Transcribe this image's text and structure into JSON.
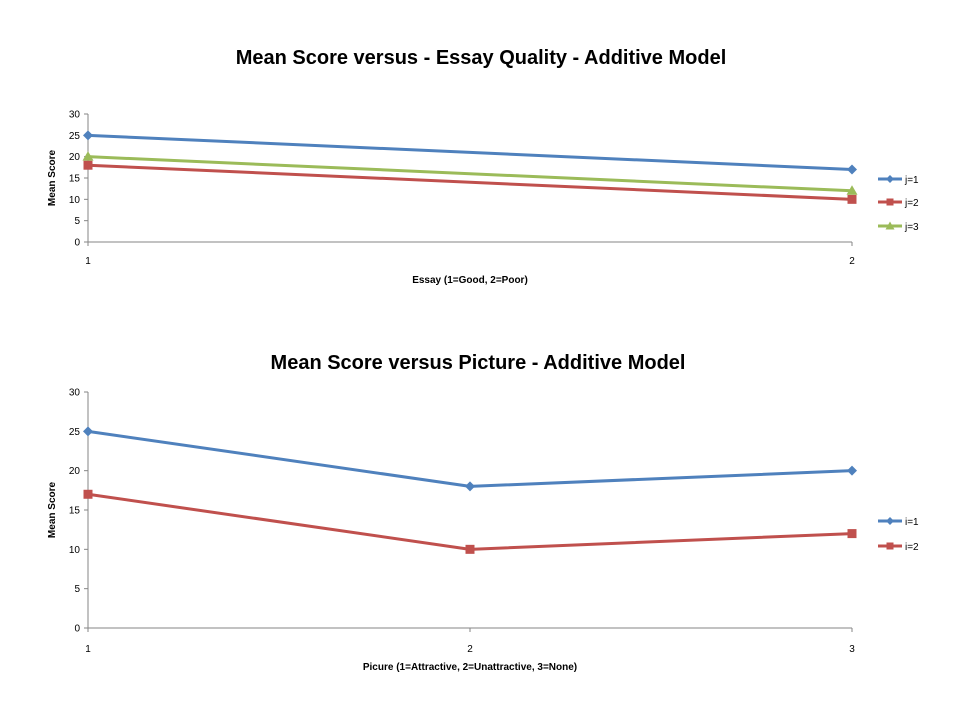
{
  "chart_data": [
    {
      "type": "line",
      "title": "Mean Score versus - Essay Quality - Additive Model",
      "xlabel": "Essay  (1=Good, 2=Poor)",
      "ylabel": "Mean Score",
      "categories": [
        "1",
        "2"
      ],
      "ylim": [
        0,
        30
      ],
      "yticks": [
        "0",
        "5",
        "10",
        "15",
        "20",
        "25",
        "30"
      ],
      "grid": false,
      "legend_position": "right",
      "series": [
        {
          "name": "j=1",
          "values": [
            25,
            17
          ],
          "color": "#4F81BD",
          "marker": "diamond"
        },
        {
          "name": "j=2",
          "values": [
            18,
            10
          ],
          "color": "#C0504D",
          "marker": "square"
        },
        {
          "name": "j=3",
          "values": [
            20,
            12
          ],
          "color": "#9BBB59",
          "marker": "triangle"
        }
      ]
    },
    {
      "type": "line",
      "title": "Mean Score versus Picture - Additive Model",
      "xlabel": "Picure  (1=Attractive, 2=Unattractive, 3=None)",
      "ylabel": "Mean Score",
      "categories": [
        "1",
        "2",
        "3"
      ],
      "ylim": [
        0,
        30
      ],
      "yticks": [
        "0",
        "5",
        "10",
        "15",
        "20",
        "25",
        "30"
      ],
      "grid": false,
      "legend_position": "right",
      "series": [
        {
          "name": "i=1",
          "values": [
            25,
            18,
            20
          ],
          "color": "#4F81BD",
          "marker": "diamond"
        },
        {
          "name": "i=2",
          "values": [
            17,
            10,
            12
          ],
          "color": "#C0504D",
          "marker": "square"
        }
      ]
    }
  ]
}
